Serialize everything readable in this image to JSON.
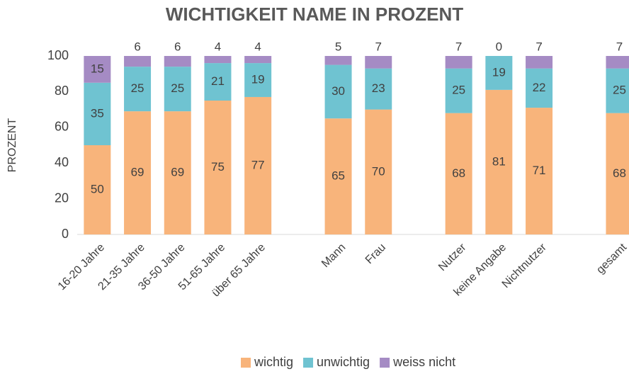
{
  "chart_data": {
    "type": "stacked_bar",
    "title": "WICHTIGKEIT NAME IN PROZENT",
    "y_label": "PROZENT",
    "categories": [
      "16-20 Jahre",
      "21-35 Jahre",
      "36-50 Jahre",
      "51-65 Jahre",
      "über 65 Jahre",
      null,
      "Mann",
      "Frau",
      null,
      "Nutzer",
      "keine Angabe",
      "Nichtnutzer",
      null,
      "gesamt"
    ],
    "series": [
      {
        "name": "wichtig",
        "color": "#f8b47b",
        "values": [
          50,
          69,
          69,
          75,
          77,
          null,
          65,
          70,
          null,
          68,
          81,
          71,
          null,
          68
        ]
      },
      {
        "name": "unwichtig",
        "color": "#6fc3d1",
        "values": [
          35,
          25,
          25,
          21,
          19,
          null,
          30,
          23,
          null,
          25,
          19,
          22,
          null,
          25
        ]
      },
      {
        "name": "weiss nicht",
        "color": "#a58bc4",
        "values": [
          15,
          6,
          6,
          4,
          4,
          null,
          5,
          7,
          null,
          7,
          0,
          7,
          null,
          7
        ]
      }
    ],
    "ylim": [
      0,
      100
    ],
    "yticks": [
      0,
      20,
      40,
      60,
      80,
      100
    ],
    "grid": false,
    "legend": "bottom"
  }
}
